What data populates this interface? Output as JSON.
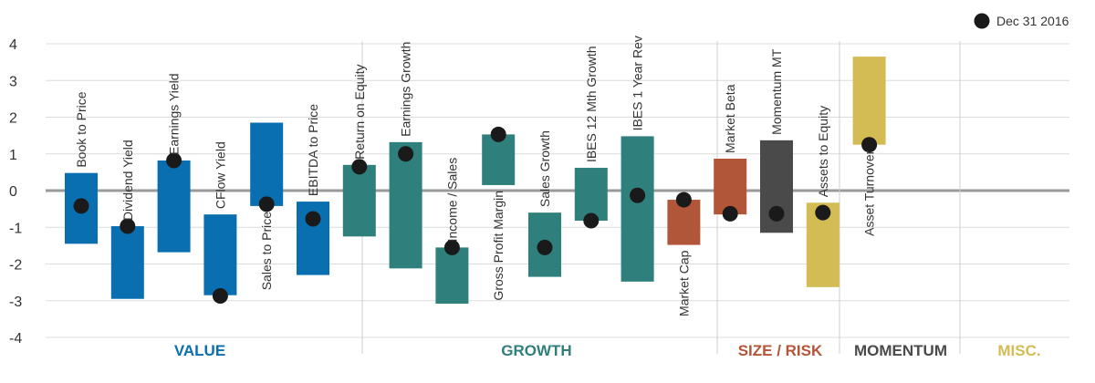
{
  "chart_data": {
    "type": "bar",
    "subtype": "range-bar-with-point",
    "yticks": [
      "4",
      "3",
      "2",
      "1",
      "0",
      "-1",
      "-2",
      "-3",
      "-4"
    ],
    "ytick_values": [
      4,
      3,
      2,
      1,
      0,
      -1,
      -2,
      -3,
      -4
    ],
    "ylim": [
      -4,
      4
    ],
    "legend": {
      "label": "Dec 31 2016",
      "marker": "dot",
      "placement": "top-right"
    },
    "groups": [
      {
        "name": "VALUE",
        "color": "#0a6fb0",
        "items": [
          0,
          1,
          2,
          3,
          4,
          5
        ]
      },
      {
        "name": "GROWTH",
        "color": "#2f7f7c",
        "items": [
          6,
          7,
          8,
          9,
          10,
          11,
          12
        ]
      },
      {
        "name": "SIZE / RISK",
        "color": "#b2563a",
        "items": [
          13,
          14
        ]
      },
      {
        "name": "MOMENTUM",
        "color": "#4a4a4a",
        "items": [
          15
        ]
      },
      {
        "name": "MISC.",
        "color": "#d4bc55",
        "items": [
          16,
          17
        ]
      }
    ],
    "bars": [
      {
        "label": "Book to Price",
        "low": -1.45,
        "high": 0.48,
        "value": -0.42,
        "label_pos": "above"
      },
      {
        "label": "Dividend Yield",
        "low": -2.95,
        "high": -0.97,
        "value": -0.97,
        "label_pos": "above"
      },
      {
        "label": "Earnings Yield",
        "low": -1.68,
        "high": 0.82,
        "value": 0.82,
        "label_pos": "above"
      },
      {
        "label": "CFlow Yield",
        "low": -2.85,
        "high": -0.65,
        "value": -2.87,
        "label_pos": "above"
      },
      {
        "label": "Sales to Price",
        "low": -0.42,
        "high": 1.85,
        "value": -0.37,
        "label_pos": "below"
      },
      {
        "label": "EBITDA to Price",
        "low": -2.3,
        "high": -0.3,
        "value": -0.77,
        "label_pos": "above"
      },
      {
        "label": "Return on Equity",
        "low": -1.25,
        "high": 0.7,
        "value": 0.65,
        "label_pos": "above"
      },
      {
        "label": "Earnings Growth",
        "low": -2.12,
        "high": 1.32,
        "value": 1.0,
        "label_pos": "above"
      },
      {
        "label": "Income / Sales",
        "low": -3.08,
        "high": -1.55,
        "value": -1.55,
        "label_pos": "above"
      },
      {
        "label": "Gross Profit Margin",
        "low": 0.15,
        "high": 1.53,
        "value": 1.53,
        "label_pos": "below"
      },
      {
        "label": "Sales Growth",
        "low": -2.35,
        "high": -0.6,
        "value": -1.55,
        "label_pos": "above"
      },
      {
        "label": "IBES 12 Mth Growth",
        "low": -0.82,
        "high": 0.62,
        "value": -0.82,
        "label_pos": "above"
      },
      {
        "label": "IBES 1 Year Rev",
        "low": -2.48,
        "high": 1.48,
        "value": -0.13,
        "label_pos": "above"
      },
      {
        "label": "Market Cap",
        "low": -1.48,
        "high": -0.25,
        "value": -0.25,
        "label_pos": "below"
      },
      {
        "label": "Market Beta",
        "low": -0.65,
        "high": 0.87,
        "value": -0.63,
        "label_pos": "above"
      },
      {
        "label": "Momentum MT",
        "low": -1.15,
        "high": 1.37,
        "value": -0.63,
        "label_pos": "above"
      },
      {
        "label": "Assets to Equity",
        "low": -2.63,
        "high": -0.33,
        "value": -0.6,
        "label_pos": "above"
      },
      {
        "label": "Asset Turnover",
        "low": 1.25,
        "high": 3.65,
        "value": 1.25,
        "label_pos": "below"
      }
    ]
  }
}
